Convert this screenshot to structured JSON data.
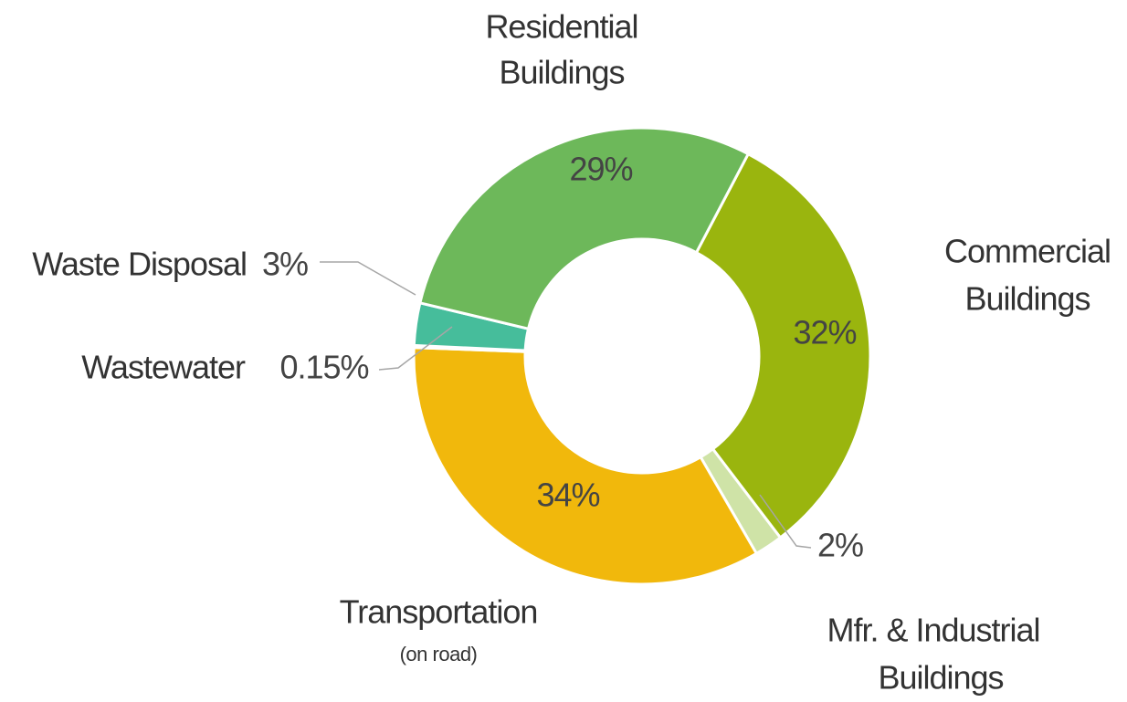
{
  "chart_data": {
    "type": "donut",
    "categories": [
      [
        "Commercial",
        "Buildings"
      ],
      [
        "Mfr. & Industrial",
        "Buildings"
      ],
      [
        "Transportation",
        "(on road)"
      ],
      [
        "Wastewater"
      ],
      [
        "Waste Disposal"
      ],
      [
        "Residential",
        "Buildings"
      ]
    ],
    "values": [
      32,
      2,
      34,
      0.15,
      3,
      29
    ],
    "value_labels": [
      "32%",
      "2%",
      "34%",
      "0.15%",
      "3%",
      "29%"
    ],
    "colors": [
      "#9ab50e",
      "#cfe3a7",
      "#f1b80c",
      "#2f9e7f",
      "#46bd9b",
      "#6db85a"
    ]
  }
}
